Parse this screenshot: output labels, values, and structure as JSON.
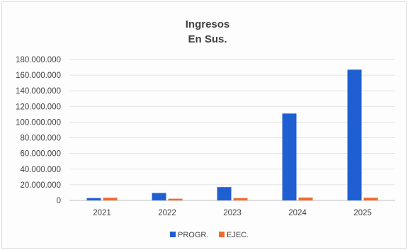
{
  "chart_data": {
    "type": "bar",
    "title_line1": "Ingresos",
    "title_line2": "En Sus.",
    "xlabel": "",
    "ylabel": "",
    "categories": [
      "2021",
      "2022",
      "2023",
      "2024",
      "2025"
    ],
    "series": [
      {
        "name": "PROGR.",
        "color": "#1f5fd1",
        "values": [
          3000000,
          9500000,
          17000000,
          111000000,
          167000000
        ]
      },
      {
        "name": "EJEC.",
        "color": "#f06a2c",
        "values": [
          3500000,
          2200000,
          3000000,
          3700000,
          3500000
        ]
      }
    ],
    "ylim": [
      0,
      180000000
    ],
    "yticks": [
      "0",
      "20.000.000",
      "40.000.000",
      "60.000.000",
      "80.000.000",
      "100.000.000",
      "120.000.000",
      "140.000.000",
      "160.000.000",
      "180.000.000"
    ],
    "grid": true,
    "legend_position": "bottom"
  }
}
